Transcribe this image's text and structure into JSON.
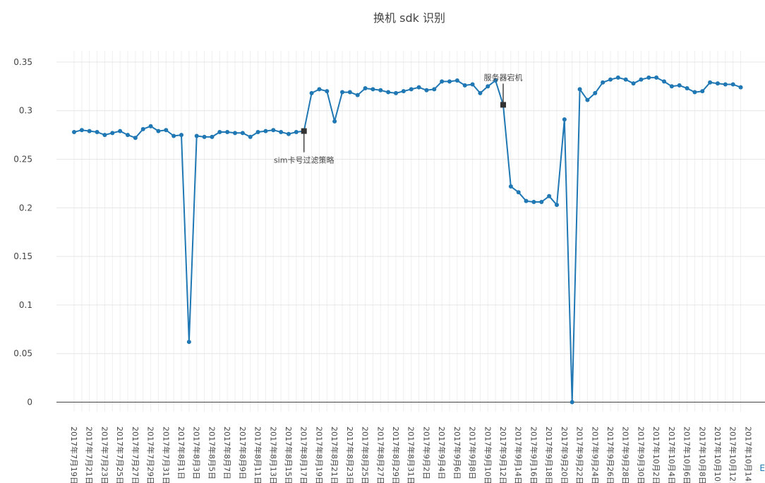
{
  "chart_data": {
    "type": "line",
    "title": "换机 sdk 识别",
    "xlabel": "",
    "ylabel": "",
    "ylim": [
      -0.01,
      0.355
    ],
    "yticks": [
      0,
      0.05,
      0.1,
      0.15,
      0.2,
      0.25,
      0.3,
      0.35
    ],
    "ytick_labels": [
      "0",
      "0.05",
      "0.1",
      "0.15",
      "0.2",
      "0.25",
      "0.3",
      "0.35"
    ],
    "grid": true,
    "legend": "none",
    "x_start": "2017-07-19",
    "x_tick_every_days": 2,
    "tick_labels": [
      "2017年7月19日",
      "2017年7月21日",
      "2017年7月23日",
      "2017年7月25日",
      "2017年7月27日",
      "2017年7月29日",
      "2017年7月31日",
      "2017年8月1日",
      "2017年8月3日",
      "2017年8月5日",
      "2017年8月7日",
      "2017年8月9日",
      "2017年8月11日",
      "2017年8月13日",
      "2017年8月15日",
      "2017年8月17日",
      "2017年8月19日",
      "2017年8月21日",
      "2017年8月23日",
      "2017年8月25日",
      "2017年8月27日",
      "2017年8月29日",
      "2017年8月31日",
      "2017年9月2日",
      "2017年9月4日",
      "2017年9月6日",
      "2017年9月8日",
      "2017年9月10日",
      "2017年9月12日",
      "2017年9月14日",
      "2017年9月16日",
      "2017年9月18日",
      "2017年9月20日",
      "2017年9月22日",
      "2017年9月24日",
      "2017年9月26日",
      "2017年9月28日",
      "2017年9月30日",
      "2017年10月2日",
      "2017年10月4日",
      "2017年10月6日",
      "2017年10月8日",
      "2017年10月10日",
      "2017年10月12日",
      "2017年10月14日"
    ],
    "series": [
      {
        "color": "#1f77b4",
        "values": [
          0.278,
          0.28,
          0.279,
          0.278,
          0.275,
          0.277,
          0.279,
          0.275,
          0.272,
          0.281,
          0.284,
          0.279,
          0.28,
          0.274,
          0.275,
          0.062,
          0.274,
          0.273,
          0.273,
          0.278,
          0.278,
          0.277,
          0.277,
          0.273,
          0.278,
          0.279,
          0.28,
          0.278,
          0.276,
          0.278,
          0.279,
          0.318,
          0.322,
          0.32,
          0.289,
          0.319,
          0.319,
          0.316,
          0.323,
          0.322,
          0.321,
          0.319,
          0.318,
          0.32,
          0.322,
          0.324,
          0.321,
          0.322,
          0.33,
          0.33,
          0.331,
          0.326,
          0.327,
          0.318,
          0.325,
          0.331,
          0.306,
          0.222,
          0.216,
          0.207,
          0.206,
          0.206,
          0.212,
          0.203,
          0.291,
          0.0,
          0.322,
          0.311,
          0.318,
          0.329,
          0.332,
          0.334,
          0.332,
          0.328,
          0.332,
          0.334,
          0.334,
          0.33,
          0.325,
          0.326,
          0.323,
          0.319,
          0.32,
          0.329,
          0.328,
          0.327,
          0.327,
          0.324
        ]
      }
    ],
    "annotations": [
      {
        "text": "sim卡号过滤策略",
        "index": 30,
        "position": "below"
      },
      {
        "text": "服务器宕机",
        "index": 56,
        "position": "above"
      }
    ]
  },
  "corner_label": "E"
}
